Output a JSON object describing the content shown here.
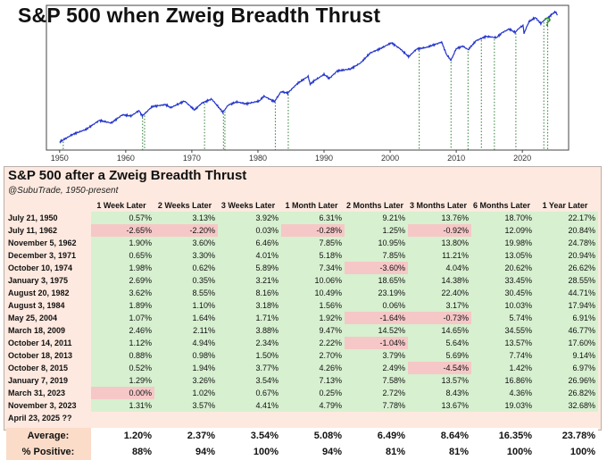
{
  "title": "S&P 500 when Zweig Breadth Thrust",
  "chart_data": [
    {
      "type": "line",
      "title": "S&P 500 when Zweig Breadth Thrust",
      "log_scale": true,
      "x_ticks": [
        1950,
        1960,
        1970,
        1980,
        1990,
        2000,
        2010,
        2020
      ],
      "xlim": [
        1948,
        2027
      ],
      "series": [
        {
          "color": "#2233cc",
          "x": [
            1950,
            1952,
            1954,
            1956,
            1957.8,
            1959.5,
            1960.8,
            1962.0,
            1962.5,
            1964,
            1966.0,
            1966.8,
            1968.9,
            1970.4,
            1971.5,
            1973.0,
            1974.7,
            1975.5,
            1976.8,
            1978.2,
            1980.2,
            1980.9,
            1982.5,
            1983.5,
            1984.5,
            1986,
            1987.6,
            1987.9,
            1988.5,
            1990,
            1990.8,
            1992,
            1994,
            1995.5,
            1997,
            1998.5,
            2000.2,
            2001.5,
            2002.8,
            2004,
            2005.5,
            2007.8,
            2008.5,
            2009.2,
            2010,
            2011,
            2011.8,
            2013,
            2014.5,
            2016.1,
            2017,
            2018,
            2018.9,
            2019.5,
            2020.1,
            2020.25,
            2021,
            2021.95,
            2022.8,
            2023.5,
            2024,
            2024.8,
            2025.1,
            2025.3
          ],
          "y": [
            17,
            24,
            30,
            45,
            40,
            58,
            55,
            70,
            55,
            84,
            92,
            80,
            108,
            72,
            98,
            118,
            65,
            90,
            104,
            95,
            108,
            135,
            105,
            165,
            155,
            240,
            330,
            230,
            270,
            360,
            300,
            420,
            460,
            600,
            950,
            1150,
            1500,
            1150,
            800,
            1130,
            1220,
            1550,
            900,
            680,
            1150,
            1290,
            1100,
            1650,
            2000,
            1900,
            2400,
            2800,
            2400,
            2900,
            3300,
            2300,
            3900,
            4700,
            3600,
            4400,
            4800,
            5900,
            6000,
            5200
          ]
        }
      ],
      "signal_years": [
        1950.55,
        1962.55,
        1962.85,
        1971.92,
        1974.78,
        1975.0,
        1982.63,
        1984.59,
        2004.4,
        2009.21,
        2011.78,
        2013.8,
        2015.77,
        2019.02,
        2023.25,
        2023.84
      ],
      "annotation": "?"
    },
    {
      "type": "table",
      "title": "S&P 500 after a Zweig Breadth Thrust",
      "subtitle": "@SubuTrade, 1950-present",
      "columns": [
        "1 Week Later",
        "2 Weeks Later",
        "3 Weeks Later",
        "1 Month Later",
        "2 Months Later",
        "3 Months Later",
        "6 Months Later",
        "1 Year Later"
      ],
      "rows": [
        {
          "date": "July 21, 1950",
          "values": [
            "0.57%",
            "3.13%",
            "3.92%",
            "6.31%",
            "9.21%",
            "13.76%",
            "18.70%",
            "22.17%"
          ]
        },
        {
          "date": "July 11, 1962",
          "values": [
            "-2.65%",
            "-2.20%",
            "0.03%",
            "-0.28%",
            "1.25%",
            "-0.92%",
            "12.09%",
            "20.84%"
          ]
        },
        {
          "date": "November 5, 1962",
          "values": [
            "1.90%",
            "3.60%",
            "6.46%",
            "7.85%",
            "10.95%",
            "13.80%",
            "19.98%",
            "24.78%"
          ]
        },
        {
          "date": "December 3, 1971",
          "values": [
            "0.65%",
            "3.30%",
            "4.01%",
            "5.18%",
            "7.85%",
            "11.21%",
            "13.05%",
            "20.94%"
          ]
        },
        {
          "date": "October 10, 1974",
          "values": [
            "1.98%",
            "0.62%",
            "5.89%",
            "7.34%",
            "-3.60%",
            "4.04%",
            "20.62%",
            "26.62%"
          ]
        },
        {
          "date": "January 3, 1975",
          "values": [
            "2.69%",
            "0.35%",
            "3.21%",
            "10.06%",
            "18.65%",
            "14.38%",
            "33.45%",
            "28.55%"
          ]
        },
        {
          "date": "August 20, 1982",
          "values": [
            "3.62%",
            "8.55%",
            "8.16%",
            "10.49%",
            "23.19%",
            "22.40%",
            "30.45%",
            "44.71%"
          ]
        },
        {
          "date": "August 3, 1984",
          "values": [
            "1.89%",
            "1.10%",
            "3.18%",
            "1.56%",
            "0.06%",
            "3.17%",
            "10.03%",
            "17.94%"
          ]
        },
        {
          "date": "May 25, 2004",
          "values": [
            "1.07%",
            "1.64%",
            "1.71%",
            "1.92%",
            "-1.64%",
            "-0.73%",
            "5.74%",
            "6.91%"
          ]
        },
        {
          "date": "March 18, 2009",
          "values": [
            "2.46%",
            "2.11%",
            "3.88%",
            "9.47%",
            "14.52%",
            "14.65%",
            "34.55%",
            "46.77%"
          ]
        },
        {
          "date": "October 14, 2011",
          "values": [
            "1.12%",
            "4.94%",
            "2.34%",
            "2.22%",
            "-1.04%",
            "5.64%",
            "13.57%",
            "17.60%"
          ]
        },
        {
          "date": "October 18, 2013",
          "values": [
            "0.88%",
            "0.98%",
            "1.50%",
            "2.70%",
            "3.79%",
            "5.69%",
            "7.74%",
            "9.14%"
          ]
        },
        {
          "date": "October 8, 2015",
          "values": [
            "0.52%",
            "1.94%",
            "3.77%",
            "4.26%",
            "2.49%",
            "-4.54%",
            "1.42%",
            "6.97%"
          ]
        },
        {
          "date": "January 7, 2019",
          "values": [
            "1.29%",
            "3.26%",
            "3.54%",
            "7.13%",
            "7.58%",
            "13.57%",
            "16.86%",
            "26.96%"
          ]
        },
        {
          "date": "March 31, 2023",
          "values": [
            "0.00%",
            "1.02%",
            "0.67%",
            "0.25%",
            "2.72%",
            "8.43%",
            "4.36%",
            "26.82%"
          ]
        },
        {
          "date": "November 3, 2023",
          "values": [
            "1.31%",
            "3.57%",
            "4.41%",
            "4.79%",
            "7.78%",
            "13.67%",
            "19.03%",
            "32.68%"
          ]
        },
        {
          "date": "April 23, 2025 ??",
          "values": [
            "",
            "",
            "",
            "",
            "",
            "",
            "",
            ""
          ]
        }
      ],
      "summary": [
        {
          "label": "Average:",
          "values": [
            "1.20%",
            "2.37%",
            "3.54%",
            "5.08%",
            "6.49%",
            "8.64%",
            "16.35%",
            "23.78%"
          ]
        },
        {
          "label": "% Positive:",
          "values": [
            "88%",
            "94%",
            "100%",
            "94%",
            "81%",
            "81%",
            "100%",
            "100%"
          ]
        }
      ],
      "colors": {
        "positive": "#d7f0d0",
        "negative": "#f6c7c7",
        "summary_label": "#fbdcc9",
        "panel": "#fde9df"
      }
    }
  ]
}
